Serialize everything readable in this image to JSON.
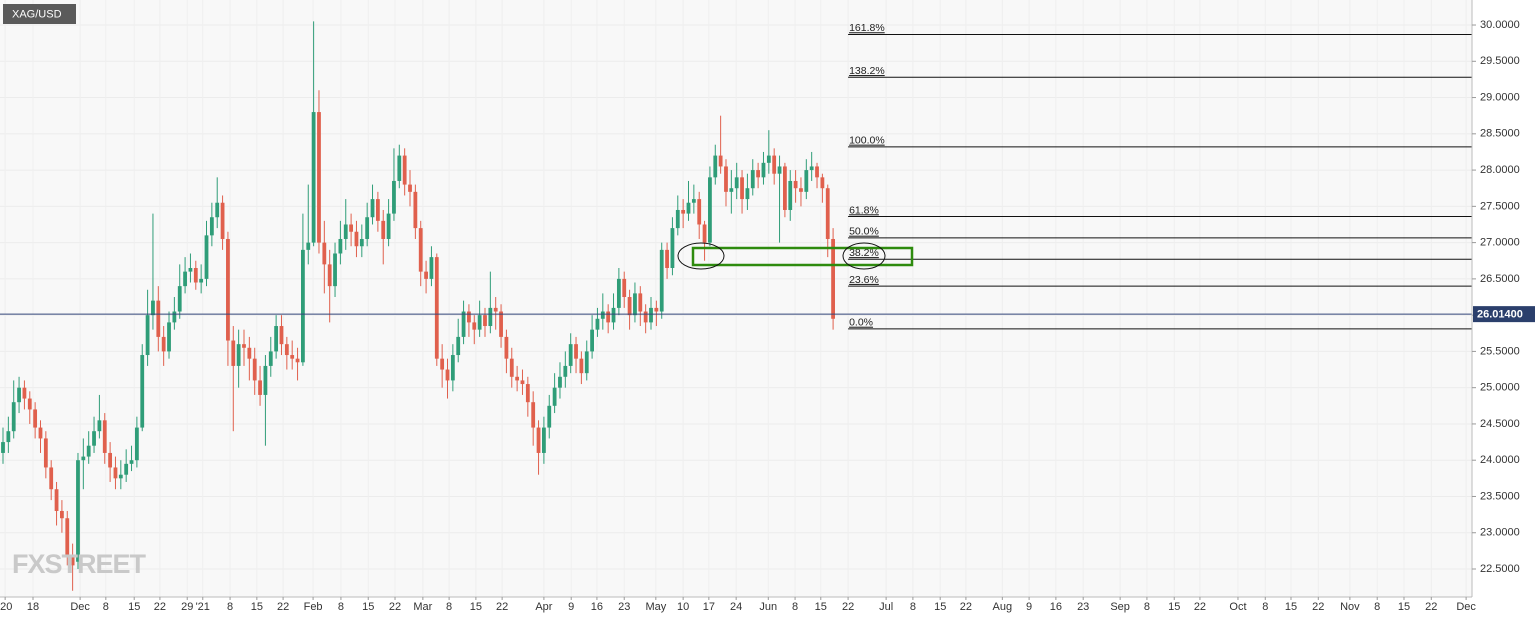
{
  "chart_data": {
    "type": "candlestick",
    "title": "XAG/USD",
    "watermark": "FXSTREET",
    "up_color": "#2f9d78",
    "down_color": "#e0604d",
    "grid": true,
    "open": [
      24.1,
      24.25,
      24.4,
      24.8,
      25.0,
      24.85,
      24.7,
      24.45,
      24.3,
      23.9,
      23.6,
      23.3,
      23.2,
      22.7,
      22.6,
      24.0,
      24.05,
      24.2,
      24.4,
      24.55,
      24.1,
      23.9,
      23.75,
      23.8,
      23.95,
      24.0,
      24.45,
      25.45,
      26.0,
      26.2,
      25.7,
      25.5,
      25.9,
      26.05,
      26.4,
      26.6,
      26.65,
      26.45,
      26.5,
      27.1,
      27.35,
      27.55,
      27.05,
      25.65,
      25.3,
      25.6,
      25.55,
      25.4,
      25.1,
      24.9,
      25.3,
      25.5,
      25.85,
      25.6,
      25.45,
      25.4,
      25.35,
      26.9,
      27.0,
      28.8,
      27.0,
      26.7,
      26.4,
      26.85,
      27.05,
      27.25,
      27.15,
      26.95,
      27.05,
      27.35,
      27.6,
      27.3,
      27.05,
      27.4,
      27.85,
      28.2,
      27.8,
      27.7,
      27.2,
      26.6,
      26.5,
      26.8,
      25.4,
      25.25,
      25.1,
      25.45,
      25.7,
      26.05,
      25.9,
      25.8,
      26.0,
      25.85,
      26.1,
      26.05,
      25.7,
      25.4,
      25.15,
      25.1,
      25.05,
      24.8,
      24.45,
      24.1,
      24.45,
      24.75,
      25.0,
      25.15,
      25.3,
      25.6,
      25.4,
      25.2,
      25.5,
      25.8,
      25.95,
      26.05,
      25.9,
      26.1,
      26.5,
      26.25,
      26.0,
      26.3,
      26.05,
      25.9,
      26.1,
      26.05,
      26.9,
      26.65,
      27.2,
      27.45,
      27.4,
      27.55,
      27.6,
      27.25,
      27.0,
      27.9,
      28.2,
      28.05,
      27.7,
      27.75,
      27.9,
      27.6,
      27.75,
      28.0,
      27.9,
      28.1,
      28.2,
      27.95,
      28.05,
      27.45,
      27.85,
      27.75,
      27.7,
      28.0,
      28.05,
      27.9,
      27.75,
      27.05
    ],
    "high": [
      24.45,
      24.6,
      25.1,
      25.15,
      25.1,
      24.95,
      24.8,
      24.55,
      24.4,
      24.0,
      23.7,
      23.45,
      23.3,
      22.85,
      24.1,
      24.3,
      24.4,
      24.6,
      24.9,
      24.65,
      24.25,
      24.05,
      24.0,
      24.15,
      24.2,
      24.6,
      25.6,
      26.35,
      27.4,
      26.4,
      25.85,
      26.05,
      26.25,
      26.7,
      26.8,
      26.85,
      26.75,
      26.7,
      27.3,
      27.55,
      27.9,
      27.65,
      27.15,
      25.85,
      25.8,
      25.8,
      25.7,
      25.55,
      25.3,
      25.45,
      25.7,
      26.0,
      26.0,
      25.7,
      25.65,
      25.55,
      27.4,
      27.8,
      30.05,
      29.1,
      27.3,
      26.9,
      27.0,
      27.3,
      27.6,
      27.4,
      27.3,
      27.25,
      27.55,
      27.8,
      27.7,
      27.45,
      27.6,
      28.3,
      28.35,
      28.3,
      28.0,
      27.8,
      27.3,
      26.75,
      26.95,
      26.85,
      25.6,
      25.4,
      25.6,
      25.95,
      26.2,
      26.15,
      26.0,
      26.2,
      26.1,
      26.6,
      26.25,
      26.15,
      25.8,
      25.55,
      25.3,
      25.25,
      25.15,
      24.95,
      24.55,
      24.6,
      24.9,
      25.2,
      25.35,
      25.5,
      25.75,
      25.7,
      25.5,
      25.65,
      26.0,
      26.1,
      26.3,
      26.15,
      26.3,
      26.65,
      26.6,
      26.35,
      26.45,
      26.4,
      26.15,
      26.25,
      26.2,
      27.0,
      27.0,
      27.35,
      27.65,
      27.6,
      27.85,
      27.8,
      27.7,
      27.3,
      28.05,
      28.35,
      28.75,
      28.15,
      28.0,
      28.1,
      28.0,
      27.95,
      28.15,
      28.1,
      28.25,
      28.55,
      28.3,
      28.2,
      28.1,
      28.0,
      28.0,
      27.9,
      28.15,
      28.25,
      28.1,
      27.95,
      27.8,
      27.2
    ],
    "low": [
      23.95,
      24.1,
      24.3,
      24.65,
      24.7,
      24.5,
      24.3,
      24.1,
      23.75,
      23.45,
      23.1,
      23.0,
      22.55,
      22.2,
      22.5,
      23.6,
      23.95,
      24.1,
      24.3,
      23.95,
      23.7,
      23.6,
      23.6,
      23.7,
      23.85,
      23.9,
      24.4,
      25.3,
      25.8,
      25.5,
      25.3,
      25.4,
      25.8,
      25.95,
      26.3,
      26.45,
      26.35,
      26.3,
      26.4,
      26.95,
      27.2,
      26.9,
      25.3,
      24.4,
      25.0,
      25.3,
      25.1,
      24.9,
      24.75,
      24.2,
      25.15,
      25.4,
      25.45,
      25.25,
      25.25,
      25.1,
      25.3,
      26.7,
      26.95,
      26.85,
      26.3,
      25.9,
      26.25,
      26.7,
      26.9,
      26.95,
      26.8,
      26.8,
      26.95,
      27.25,
      27.15,
      26.7,
      26.95,
      27.3,
      27.75,
      27.65,
      27.5,
      27.05,
      26.4,
      26.3,
      26.4,
      25.3,
      25.0,
      24.85,
      24.95,
      25.35,
      25.6,
      25.7,
      25.6,
      25.7,
      25.7,
      25.75,
      25.8,
      25.55,
      25.2,
      25.0,
      24.95,
      24.9,
      24.6,
      24.2,
      23.8,
      23.95,
      24.3,
      24.65,
      24.85,
      25.0,
      25.2,
      25.2,
      25.05,
      25.1,
      25.4,
      25.7,
      25.8,
      25.75,
      25.8,
      26.0,
      26.1,
      25.8,
      25.9,
      25.85,
      25.75,
      25.8,
      25.85,
      25.95,
      26.5,
      26.55,
      27.1,
      27.2,
      27.3,
      27.4,
      27.05,
      26.75,
      26.95,
      27.8,
      27.95,
      27.5,
      27.4,
      27.6,
      27.4,
      27.45,
      27.65,
      27.75,
      27.8,
      27.95,
      27.8,
      27.0,
      27.35,
      27.3,
      27.55,
      27.5,
      27.6,
      27.85,
      27.75,
      27.55,
      26.8,
      25.8
    ],
    "close": [
      24.25,
      24.4,
      24.8,
      25.0,
      24.85,
      24.7,
      24.45,
      24.3,
      23.9,
      23.6,
      23.3,
      23.2,
      22.7,
      22.55,
      24.0,
      24.05,
      24.2,
      24.4,
      24.55,
      24.1,
      23.9,
      23.75,
      23.8,
      23.95,
      24.0,
      24.45,
      25.45,
      26.0,
      26.2,
      25.7,
      25.5,
      25.9,
      26.05,
      26.4,
      26.6,
      26.65,
      26.45,
      26.5,
      27.1,
      27.35,
      27.55,
      27.05,
      25.65,
      25.3,
      25.6,
      25.55,
      25.4,
      25.1,
      24.9,
      25.3,
      25.5,
      25.85,
      25.6,
      25.45,
      25.4,
      25.35,
      26.9,
      27.0,
      28.8,
      27.0,
      26.7,
      26.4,
      26.85,
      27.05,
      27.25,
      27.15,
      26.95,
      27.05,
      27.35,
      27.6,
      27.3,
      27.05,
      27.4,
      27.85,
      28.2,
      27.8,
      27.7,
      27.2,
      26.6,
      26.5,
      26.8,
      25.4,
      25.25,
      25.1,
      25.45,
      25.7,
      26.05,
      25.9,
      25.8,
      26.0,
      25.85,
      26.1,
      26.05,
      25.7,
      25.4,
      25.15,
      25.1,
      25.05,
      24.8,
      24.45,
      24.1,
      24.45,
      24.75,
      25.0,
      25.15,
      25.3,
      25.6,
      25.4,
      25.2,
      25.5,
      25.8,
      25.95,
      26.05,
      25.9,
      26.1,
      26.5,
      26.25,
      26.0,
      26.3,
      26.05,
      25.9,
      26.1,
      26.05,
      26.9,
      26.65,
      27.2,
      27.45,
      27.4,
      27.55,
      27.6,
      27.25,
      27.0,
      27.9,
      28.2,
      28.05,
      27.7,
      27.75,
      27.9,
      27.6,
      27.75,
      28.0,
      27.9,
      28.1,
      28.2,
      27.95,
      28.05,
      27.45,
      27.85,
      27.75,
      27.7,
      28.0,
      28.05,
      27.9,
      27.75,
      27.05,
      25.95
    ],
    "ylim": [
      22.114,
      30.345
    ],
    "yticks": [
      {
        "value": 22.5,
        "label": "22.5000"
      },
      {
        "value": 23,
        "label": "23.0000"
      },
      {
        "value": 23.5,
        "label": "23.5000"
      },
      {
        "value": 24,
        "label": "24.0000"
      },
      {
        "value": 24.5,
        "label": "24.5000"
      },
      {
        "value": 25,
        "label": "25.0000"
      },
      {
        "value": 25.5,
        "label": "25.5000"
      },
      {
        "value": 26,
        "label": "26.0000"
      },
      {
        "value": 26.5,
        "label": "26.5000"
      },
      {
        "value": 27,
        "label": "27.0000"
      },
      {
        "value": 27.5,
        "label": "27.5000"
      },
      {
        "value": 28,
        "label": "28.0000"
      },
      {
        "value": 28.5,
        "label": "28.5000"
      },
      {
        "value": 29,
        "label": "29.0000"
      },
      {
        "value": 29.5,
        "label": "29.5000"
      },
      {
        "value": 30,
        "label": "30.0000"
      }
    ],
    "xlim": [
      -0.56,
      274.3
    ],
    "xticks": [
      {
        "value": 0.4,
        "label": "'20"
      },
      {
        "value": 5.6,
        "label": "18"
      },
      {
        "value": 14.4,
        "label": "Dec"
      },
      {
        "value": 19.2,
        "label": "8"
      },
      {
        "value": 24.5,
        "label": "15"
      },
      {
        "value": 29.3,
        "label": "22"
      },
      {
        "value": 34.4,
        "label": "29"
      },
      {
        "value": 37.3,
        "label": "'21"
      },
      {
        "value": 42.4,
        "label": "8"
      },
      {
        "value": 47.4,
        "label": "15"
      },
      {
        "value": 52.3,
        "label": "22"
      },
      {
        "value": 57.9,
        "label": "Feb"
      },
      {
        "value": 63.1,
        "label": "8"
      },
      {
        "value": 68.2,
        "label": "15"
      },
      {
        "value": 73.2,
        "label": "22"
      },
      {
        "value": 78.4,
        "label": "Mar"
      },
      {
        "value": 83.3,
        "label": "8"
      },
      {
        "value": 88.3,
        "label": "15"
      },
      {
        "value": 93.2,
        "label": "22"
      },
      {
        "value": 101.0,
        "label": "Apr"
      },
      {
        "value": 106.1,
        "label": "9"
      },
      {
        "value": 110.9,
        "label": "16"
      },
      {
        "value": 116.0,
        "label": "23"
      },
      {
        "value": 121.9,
        "label": "May"
      },
      {
        "value": 127.0,
        "label": "10"
      },
      {
        "value": 131.8,
        "label": "17"
      },
      {
        "value": 136.9,
        "label": "24"
      },
      {
        "value": 142.9,
        "label": "Jun"
      },
      {
        "value": 147.9,
        "label": "8"
      },
      {
        "value": 152.7,
        "label": "15"
      },
      {
        "value": 157.8,
        "label": "22"
      },
      {
        "value": 164.9,
        "label": "Jul"
      },
      {
        "value": 169.9,
        "label": "8"
      },
      {
        "value": 175.0,
        "label": "15"
      },
      {
        "value": 179.8,
        "label": "22"
      },
      {
        "value": 186.6,
        "label": "Aug"
      },
      {
        "value": 191.6,
        "label": "9"
      },
      {
        "value": 196.6,
        "label": "16"
      },
      {
        "value": 201.7,
        "label": "23"
      },
      {
        "value": 208.6,
        "label": "Sep"
      },
      {
        "value": 213.6,
        "label": "8"
      },
      {
        "value": 218.7,
        "label": "15"
      },
      {
        "value": 223.5,
        "label": "22"
      },
      {
        "value": 230.6,
        "label": "Oct"
      },
      {
        "value": 235.7,
        "label": "8"
      },
      {
        "value": 240.5,
        "label": "15"
      },
      {
        "value": 245.6,
        "label": "22"
      },
      {
        "value": 251.5,
        "label": "Nov"
      },
      {
        "value": 256.6,
        "label": "8"
      },
      {
        "value": 261.6,
        "label": "15"
      },
      {
        "value": 266.7,
        "label": "22"
      },
      {
        "value": 273.2,
        "label": "Dec"
      }
    ],
    "last_price": {
      "value": 26.014,
      "label": "26.01400"
    },
    "fib_start": 157.8,
    "fib_levels": [
      {
        "label": "161.8%",
        "value": 29.87
      },
      {
        "label": "138.2%",
        "value": 29.28
      },
      {
        "label": "100.0%",
        "value": 28.32
      },
      {
        "label": "61.8%",
        "value": 27.36
      },
      {
        "label": "50.0%",
        "value": 27.065
      },
      {
        "label": "38.2%",
        "value": 26.77
      },
      {
        "label": "23.6%",
        "value": 26.4
      },
      {
        "label": "0.0%",
        "value": 25.81
      }
    ]
  }
}
